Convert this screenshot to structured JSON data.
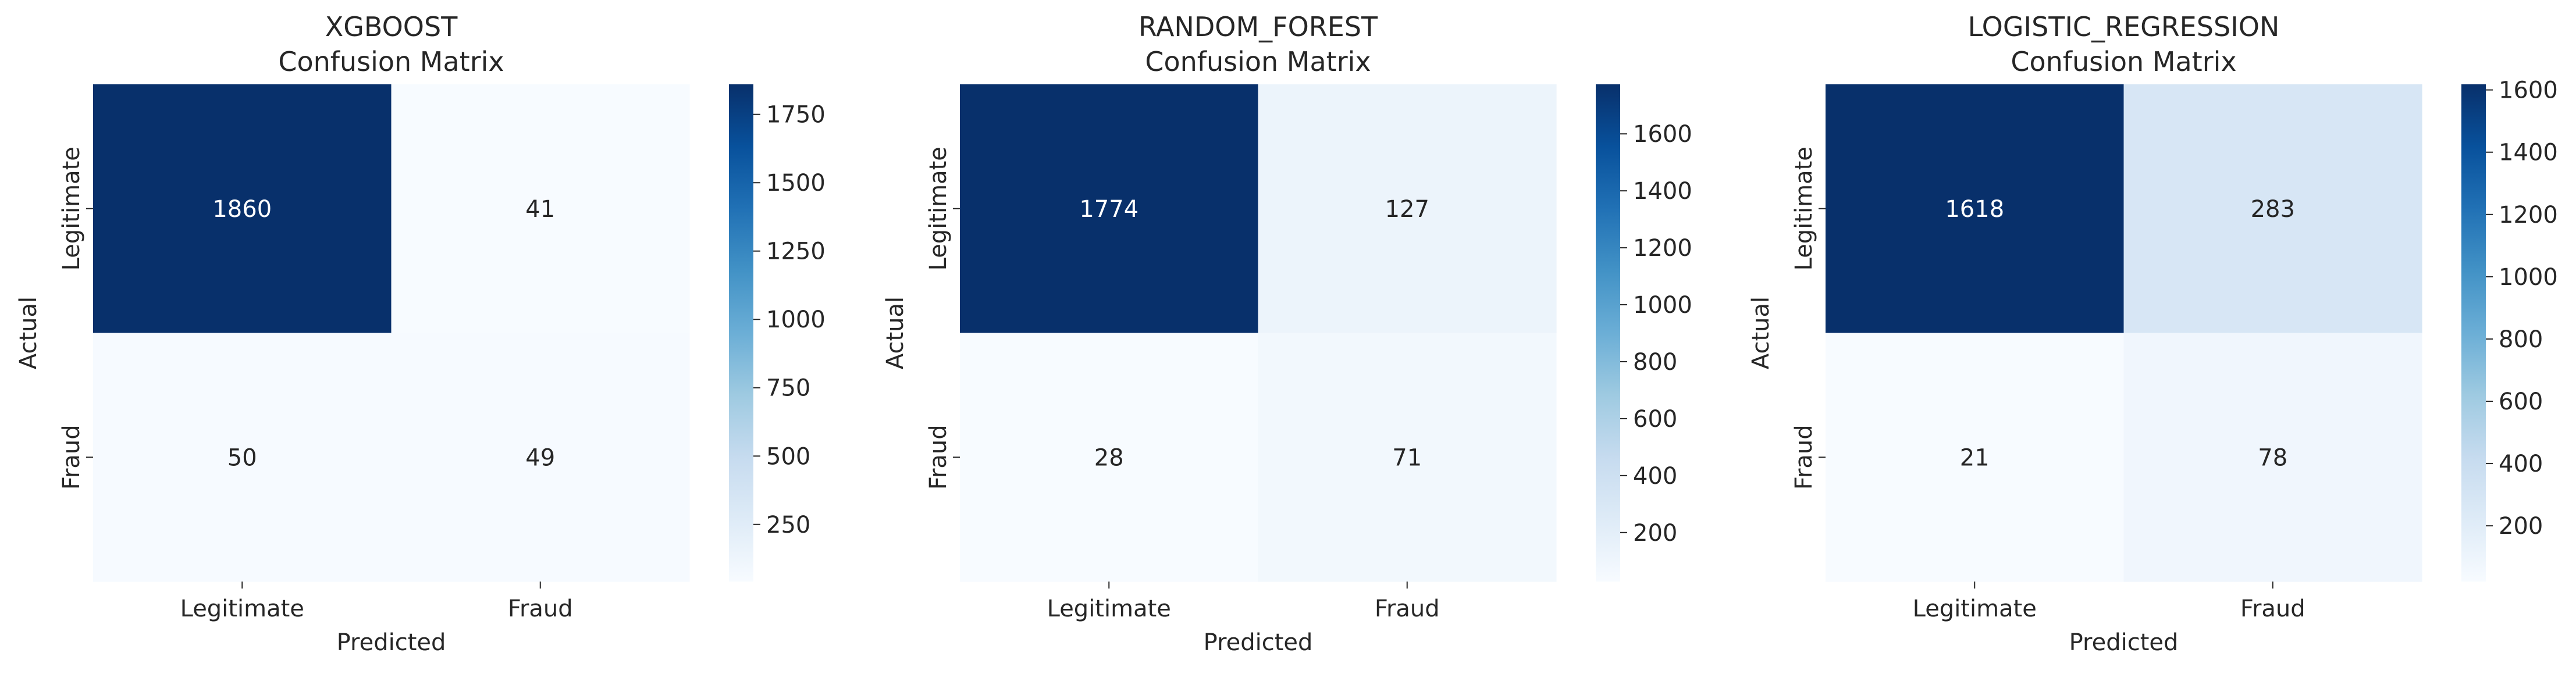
{
  "figure": {
    "background": "#ffffff",
    "colormap": "Blues",
    "text_dark": "#262626",
    "text_light": "#ffffff"
  },
  "chart_data": [
    {
      "type": "heatmap",
      "title": "XGBOOST",
      "subtitle": "Confusion Matrix",
      "xlabel": "Predicted",
      "ylabel": "Actual",
      "x_categories": [
        "Legitimate",
        "Fraud"
      ],
      "y_categories": [
        "Legitimate",
        "Fraud"
      ],
      "values": [
        [
          1860,
          41
        ],
        [
          50,
          49
        ]
      ],
      "colorbar": {
        "range": [
          41,
          1860
        ],
        "ticks": [
          250,
          500,
          750,
          1000,
          1250,
          1500,
          1750
        ]
      }
    },
    {
      "type": "heatmap",
      "title": "RANDOM_FOREST",
      "subtitle": "Confusion Matrix",
      "xlabel": "Predicted",
      "ylabel": "Actual",
      "x_categories": [
        "Legitimate",
        "Fraud"
      ],
      "y_categories": [
        "Legitimate",
        "Fraud"
      ],
      "values": [
        [
          1774,
          127
        ],
        [
          28,
          71
        ]
      ],
      "colorbar": {
        "range": [
          28,
          1774
        ],
        "ticks": [
          200,
          400,
          600,
          800,
          1000,
          1200,
          1400,
          1600
        ]
      }
    },
    {
      "type": "heatmap",
      "title": "LOGISTIC_REGRESSION",
      "subtitle": "Confusion Matrix",
      "xlabel": "Predicted",
      "ylabel": "Actual",
      "x_categories": [
        "Legitimate",
        "Fraud"
      ],
      "y_categories": [
        "Legitimate",
        "Fraud"
      ],
      "values": [
        [
          1618,
          283
        ],
        [
          21,
          78
        ]
      ],
      "colorbar": {
        "range": [
          21,
          1618
        ],
        "ticks": [
          200,
          400,
          600,
          800,
          1000,
          1200,
          1400,
          1600
        ]
      }
    }
  ]
}
